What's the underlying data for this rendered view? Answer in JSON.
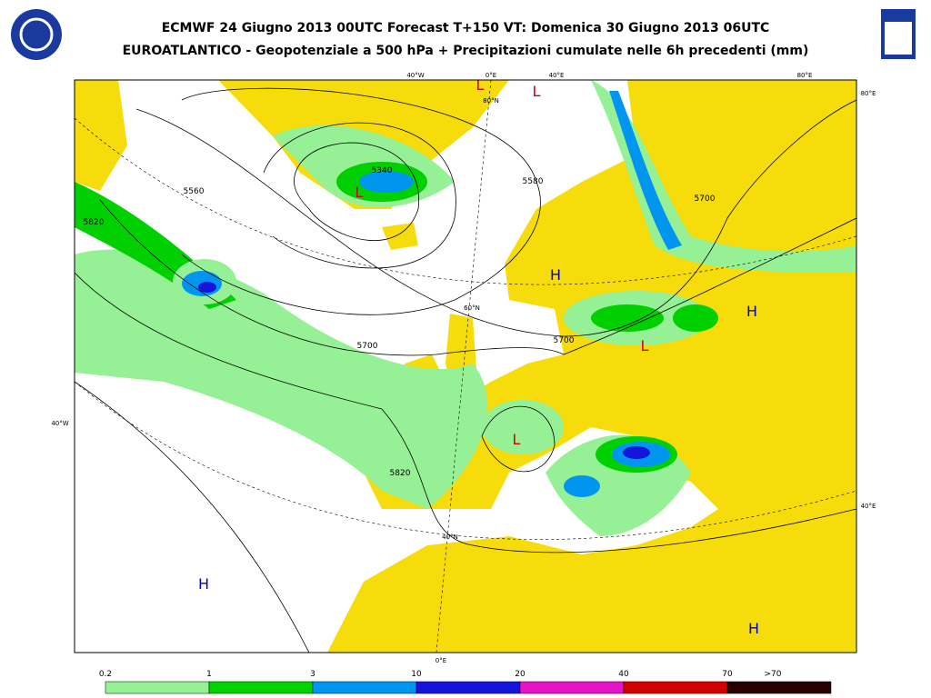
{
  "header": {
    "title": "ECMWF 24 Giugno 2013 00UTC Forecast T+150 VT: Domenica 30 Giugno 2013 06UTC",
    "subtitle": "EUROATLANTICO - Geopotenziale a 500 hPa + Precipitazioni cumulate nelle 6h precedenti (mm)"
  },
  "map": {
    "graticule_labels": [
      "40°W",
      "0°E",
      "40°E",
      "80°E",
      "80°E",
      "40°W",
      "40°E",
      "0°E",
      "80°N",
      "60°N",
      "40°N"
    ],
    "contour_labels": [
      "5340",
      "5580",
      "5560",
      "5820",
      "5700",
      "5700",
      "5700",
      "5820"
    ],
    "centers": [
      "L",
      "L",
      "L",
      "H",
      "H",
      "L",
      "L",
      "H",
      "H"
    ]
  },
  "colorbar": {
    "labels": [
      "0.2",
      "1",
      "3",
      "10",
      "20",
      "40",
      "70",
      ">70"
    ]
  }
}
